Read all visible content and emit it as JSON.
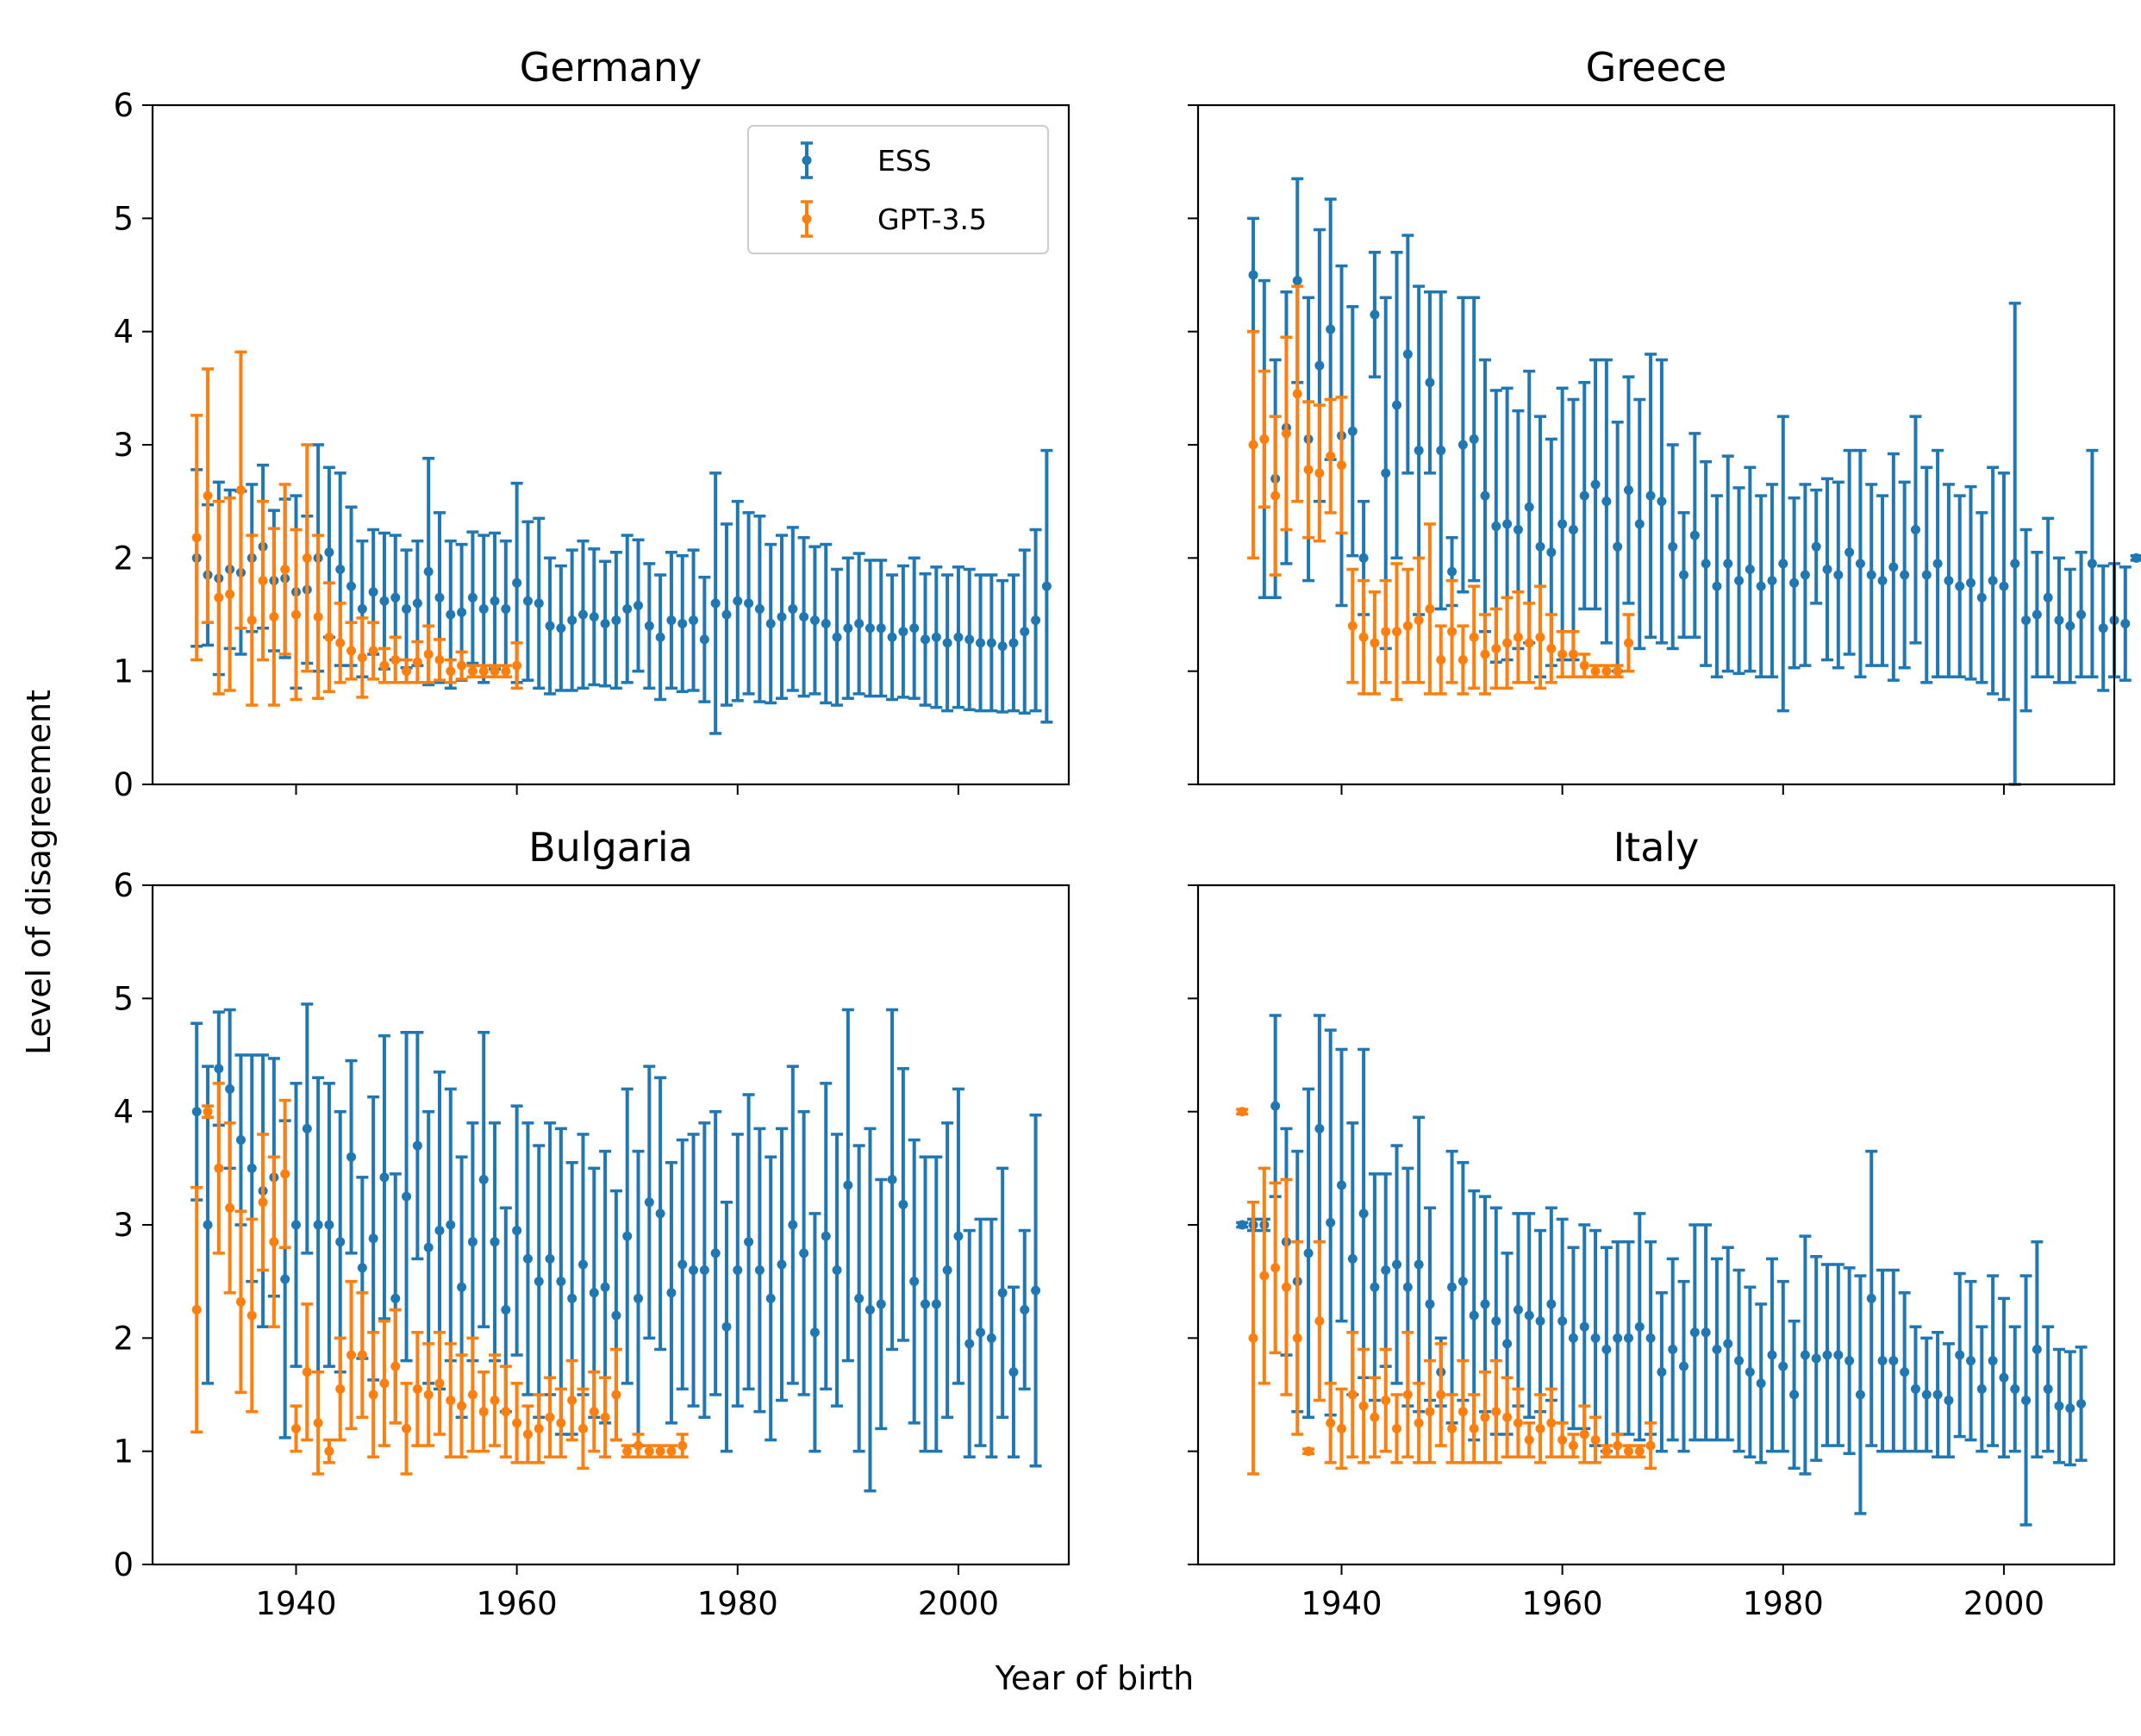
{
  "figure": {
    "xlabel": "Year of birth",
    "ylabel": "Level of disagreement"
  },
  "colors": {
    "ESS": "#1f77b4",
    "GPT-3.5": "#ff7f0e"
  },
  "legend": {
    "placement": "top-right",
    "panel": 0,
    "entries": [
      "ESS",
      "GPT-3.5"
    ]
  },
  "chart_data": [
    {
      "type": "scatter",
      "title": "Germany",
      "x_start": 1931,
      "xlim": [
        1927,
        2010
      ],
      "ylim": [
        0,
        6
      ],
      "x_ticks": [
        1940,
        1960,
        1980,
        2000
      ],
      "y_ticks": [
        0,
        1,
        2,
        3,
        4,
        5,
        6
      ],
      "series": [
        {
          "name": "ESS",
          "mean": [
            2.0,
            1.85,
            1.82,
            1.9,
            1.87,
            2.0,
            2.1,
            1.8,
            1.82,
            1.7,
            1.72,
            2.0,
            2.05,
            1.9,
            1.75,
            1.55,
            1.7,
            1.62,
            1.65,
            1.55,
            1.6,
            1.88,
            1.65,
            1.5,
            1.52,
            1.65,
            1.55,
            1.62,
            1.55,
            1.78,
            1.62,
            1.6,
            1.4,
            1.38,
            1.45,
            1.5,
            1.48,
            1.42,
            1.45,
            1.55,
            1.58,
            1.4,
            1.3,
            1.45,
            1.42,
            1.45,
            1.28,
            1.6,
            1.5,
            1.62,
            1.6,
            1.55,
            1.42,
            1.48,
            1.55,
            1.48,
            1.45,
            1.42,
            1.3,
            1.38,
            1.42,
            1.38,
            1.38,
            1.3,
            1.35,
            1.38,
            1.28,
            1.3,
            1.25,
            1.3,
            1.28,
            1.25,
            1.25,
            1.22,
            1.25,
            1.35,
            1.45,
            1.75
          ],
          "err": [
            0.78,
            0.62,
            0.85,
            0.7,
            0.72,
            0.65,
            0.72,
            0.62,
            0.7,
            0.85,
            0.65,
            1.0,
            0.75,
            0.85,
            0.7,
            0.6,
            0.55,
            0.6,
            0.55,
            0.52,
            0.55,
            1.0,
            0.75,
            0.65,
            0.6,
            0.58,
            0.65,
            0.6,
            0.6,
            0.88,
            0.7,
            0.75,
            0.6,
            0.55,
            0.62,
            0.65,
            0.6,
            0.55,
            0.6,
            0.65,
            0.58,
            0.55,
            0.55,
            0.6,
            0.6,
            0.62,
            0.55,
            1.15,
            0.8,
            0.88,
            0.8,
            0.82,
            0.7,
            0.72,
            0.72,
            0.7,
            0.65,
            0.7,
            0.6,
            0.62,
            0.62,
            0.6,
            0.6,
            0.55,
            0.58,
            0.62,
            0.58,
            0.62,
            0.6,
            0.62,
            0.62,
            0.6,
            0.6,
            0.58,
            0.6,
            0.72,
            0.8,
            1.2
          ]
        },
        {
          "name": "GPT-3.5",
          "mean": [
            2.18,
            2.55,
            1.65,
            1.68,
            2.6,
            1.45,
            1.8,
            1.48,
            1.9,
            1.5,
            2.0,
            1.48,
            1.3,
            1.25,
            1.18,
            1.12,
            1.18,
            1.05,
            1.1,
            1.0,
            1.08,
            1.15,
            1.1,
            1.0,
            1.05,
            1.0,
            1.0,
            1.0,
            1.0,
            1.05
          ],
          "err": [
            1.08,
            1.12,
            0.85,
            0.85,
            1.22,
            0.75,
            0.7,
            0.78,
            0.75,
            0.75,
            1.0,
            0.72,
            0.48,
            0.35,
            0.25,
            0.35,
            0.25,
            0.15,
            0.2,
            0.1,
            0.18,
            0.25,
            0.18,
            0.1,
            0.12,
            0.05,
            0.05,
            0.05,
            0.05,
            0.2
          ]
        }
      ]
    },
    {
      "type": "scatter",
      "title": "Greece",
      "x_start": 1932,
      "xlim": [
        1927,
        2010
      ],
      "ylim": [
        0,
        6
      ],
      "x_ticks": [
        1940,
        1960,
        1980,
        2000
      ],
      "y_ticks": [
        0,
        1,
        2,
        3,
        4,
        5,
        6
      ],
      "series": [
        {
          "name": "ESS",
          "mean": [
            4.5,
            3.05,
            2.7,
            3.15,
            4.45,
            3.05,
            3.7,
            4.02,
            3.08,
            3.12,
            2.0,
            4.15,
            2.75,
            3.35,
            3.8,
            2.95,
            3.55,
            2.95,
            1.88,
            3.0,
            3.05,
            2.55,
            2.28,
            2.3,
            2.25,
            2.45,
            2.1,
            2.05,
            2.3,
            2.25,
            2.55,
            2.65,
            2.5,
            2.1,
            2.6,
            2.3,
            2.55,
            2.5,
            2.1,
            1.85,
            2.2,
            1.95,
            1.75,
            1.95,
            1.8,
            1.9,
            1.75,
            1.8,
            1.95,
            1.78,
            1.85,
            2.1,
            1.9,
            1.85,
            2.05,
            1.95,
            1.85,
            1.8,
            1.92,
            1.85,
            2.25,
            1.85,
            1.95,
            1.8,
            1.75,
            1.78,
            1.65,
            1.8,
            1.75,
            1.95,
            1.45,
            1.5,
            1.65,
            1.45,
            1.4,
            1.5,
            1.95,
            1.38,
            1.45,
            1.42,
            2.0
          ],
          "err": [
            0.5,
            1.4,
            1.05,
            1.2,
            0.9,
            1.25,
            1.2,
            1.15,
            1.5,
            1.1,
            0.5,
            0.55,
            1.55,
            1.35,
            1.05,
            1.45,
            0.8,
            1.4,
            0.3,
            1.3,
            1.25,
            1.2,
            1.2,
            1.2,
            1.05,
            1.2,
            1.15,
            1.0,
            1.2,
            1.15,
            1.0,
            1.1,
            1.25,
            1.1,
            1.0,
            1.1,
            1.25,
            1.25,
            0.9,
            0.55,
            0.9,
            0.9,
            0.8,
            0.95,
            0.82,
            0.9,
            0.8,
            0.85,
            1.3,
            0.75,
            0.8,
            0.5,
            0.8,
            0.82,
            0.9,
            1.0,
            0.8,
            0.75,
            1.0,
            0.82,
            1.0,
            0.95,
            1.0,
            0.85,
            0.8,
            0.85,
            0.75,
            1.0,
            1.0,
            2.3,
            0.8,
            0.55,
            0.7,
            0.55,
            0.5,
            0.55,
            1.0,
            0.55,
            0.5,
            0.5,
            0.02
          ]
        },
        {
          "name": "GPT-3.5",
          "mean": [
            3.0,
            3.05,
            2.55,
            3.1,
            3.45,
            2.78,
            2.75,
            2.9,
            2.82,
            1.4,
            1.3,
            1.25,
            1.35,
            1.35,
            1.4,
            1.45,
            1.55,
            1.1,
            1.35,
            1.1,
            1.3,
            1.15,
            1.2,
            1.25,
            1.3,
            1.25,
            1.3,
            1.2,
            1.15,
            1.15,
            1.05,
            1.0,
            1.0,
            1.0,
            1.25
          ],
          "err": [
            1.0,
            0.6,
            0.7,
            0.85,
            0.95,
            0.6,
            0.6,
            0.5,
            0.6,
            0.5,
            0.5,
            0.45,
            0.45,
            0.6,
            0.5,
            0.55,
            0.75,
            0.3,
            0.45,
            0.3,
            0.45,
            0.35,
            0.35,
            0.4,
            0.4,
            0.35,
            0.45,
            0.3,
            0.2,
            0.2,
            0.1,
            0.05,
            0.05,
            0.05,
            0.25
          ]
        }
      ]
    },
    {
      "type": "scatter",
      "title": "Bulgaria",
      "x_start": 1931,
      "xlim": [
        1927,
        2010
      ],
      "ylim": [
        0,
        6
      ],
      "x_ticks": [
        1940,
        1960,
        1980,
        2000
      ],
      "y_ticks": [
        0,
        1,
        2,
        3,
        4,
        5,
        6
      ],
      "series": [
        {
          "name": "ESS",
          "mean": [
            4.0,
            3.0,
            4.38,
            4.2,
            3.75,
            3.5,
            3.3,
            3.42,
            2.52,
            3.0,
            3.85,
            3.0,
            3.0,
            2.85,
            3.6,
            2.62,
            2.88,
            3.42,
            2.35,
            3.25,
            3.7,
            2.8,
            2.95,
            3.0,
            2.45,
            2.85,
            3.4,
            2.85,
            2.25,
            2.95,
            2.7,
            2.5,
            2.7,
            2.5,
            2.35,
            2.65,
            2.4,
            2.45,
            2.2,
            2.9,
            2.35,
            3.2,
            3.1,
            2.4,
            2.65,
            2.6,
            2.6,
            2.75,
            2.1,
            2.6,
            2.85,
            2.6,
            2.35,
            2.65,
            3.0,
            2.75,
            2.05,
            2.9,
            2.6,
            3.35,
            2.35,
            2.25,
            2.3,
            3.4,
            3.18,
            2.5,
            2.3,
            2.3,
            2.6,
            2.9,
            1.95,
            2.05,
            2.0,
            2.4,
            1.7,
            2.25,
            2.42
          ],
          "err": [
            0.78,
            1.4,
            0.5,
            0.7,
            0.75,
            1.0,
            1.2,
            1.05,
            1.4,
            1.25,
            1.1,
            1.3,
            1.25,
            1.15,
            0.85,
            0.8,
            1.25,
            1.25,
            1.1,
            1.45,
            1.0,
            1.2,
            1.4,
            1.2,
            1.15,
            1.05,
            1.3,
            1.05,
            0.9,
            1.1,
            1.2,
            1.2,
            1.2,
            1.35,
            1.2,
            1.15,
            1.1,
            1.2,
            1.1,
            1.3,
            1.3,
            1.2,
            1.2,
            1.15,
            1.1,
            1.2,
            1.3,
            1.25,
            1.1,
            1.2,
            1.3,
            1.25,
            1.25,
            1.2,
            1.4,
            1.25,
            1.05,
            1.35,
            1.2,
            1.55,
            1.35,
            1.6,
            1.1,
            1.5,
            1.2,
            1.25,
            1.3,
            1.3,
            1.3,
            1.3,
            1.0,
            1.0,
            1.05,
            1.1,
            0.75,
            0.7,
            1.55
          ]
        },
        {
          "name": "GPT-3.5",
          "mean": [
            2.25,
            4.0,
            3.5,
            3.15,
            2.32,
            2.2,
            3.2,
            2.85,
            3.45,
            1.2,
            1.7,
            1.25,
            1.0,
            1.55,
            1.85,
            1.85,
            1.5,
            1.6,
            1.75,
            1.2,
            1.55,
            1.5,
            1.6,
            1.45,
            1.4,
            1.5,
            1.35,
            1.45,
            1.35,
            1.25,
            1.15,
            1.2,
            1.3,
            1.25,
            1.45,
            1.2,
            1.35,
            1.3,
            1.5,
            1.0,
            1.05,
            1.0,
            1.0,
            1.0,
            1.05
          ],
          "err": [
            1.08,
            0.05,
            0.75,
            0.75,
            0.8,
            0.85,
            0.6,
            0.75,
            0.65,
            0.2,
            0.6,
            0.45,
            0.1,
            0.45,
            0.65,
            0.55,
            0.55,
            0.55,
            0.5,
            0.4,
            0.5,
            0.45,
            0.45,
            0.5,
            0.45,
            0.5,
            0.35,
            0.4,
            0.4,
            0.35,
            0.25,
            0.3,
            0.35,
            0.3,
            0.35,
            0.35,
            0.35,
            0.35,
            0.4,
            0.05,
            0.1,
            0.05,
            0.05,
            0.05,
            0.1
          ]
        }
      ]
    },
    {
      "type": "scatter",
      "title": "Italy",
      "x_start": 1931,
      "xlim": [
        1927,
        2010
      ],
      "ylim": [
        0,
        6
      ],
      "x_ticks": [
        1940,
        1960,
        1980,
        2000
      ],
      "y_ticks": [
        0,
        1,
        2,
        3,
        4,
        5,
        6
      ],
      "series": [
        {
          "name": "ESS",
          "mean": [
            3.0,
            3.0,
            3.0,
            4.05,
            2.85,
            2.5,
            2.75,
            3.85,
            3.02,
            3.35,
            2.7,
            3.1,
            2.45,
            2.6,
            2.65,
            2.45,
            2.65,
            2.3,
            1.7,
            2.45,
            2.5,
            2.2,
            2.3,
            2.15,
            1.95,
            2.25,
            2.2,
            2.15,
            2.3,
            2.15,
            2.0,
            2.1,
            2.0,
            1.9,
            2.0,
            2.0,
            2.1,
            2.0,
            1.7,
            1.9,
            1.75,
            2.05,
            2.05,
            1.9,
            1.95,
            1.8,
            1.7,
            1.6,
            1.85,
            1.75,
            1.5,
            1.85,
            1.82,
            1.85,
            1.85,
            1.8,
            1.5,
            2.35,
            1.8,
            1.8,
            1.7,
            1.55,
            1.5,
            1.5,
            1.45,
            1.85,
            1.8,
            1.55,
            1.8,
            1.65,
            1.55,
            1.45,
            1.9,
            1.55,
            1.4,
            1.38,
            1.42
          ],
          "err": [
            0.02,
            0.05,
            0.05,
            0.8,
            1.0,
            1.15,
            1.45,
            1.0,
            1.7,
            1.2,
            1.2,
            1.45,
            1.0,
            0.85,
            1.05,
            1.05,
            1.3,
            0.85,
            0.3,
            1.2,
            1.05,
            1.1,
            0.95,
            1.0,
            0.8,
            0.85,
            0.9,
            0.8,
            0.85,
            0.9,
            0.8,
            0.9,
            0.95,
            0.9,
            0.85,
            0.85,
            1.0,
            0.85,
            0.7,
            0.8,
            0.75,
            0.95,
            0.95,
            0.8,
            0.85,
            0.8,
            0.75,
            0.7,
            0.85,
            0.75,
            0.65,
            1.05,
            0.9,
            0.8,
            0.8,
            0.82,
            1.05,
            1.3,
            0.8,
            0.8,
            0.7,
            0.55,
            0.5,
            0.55,
            0.5,
            0.72,
            0.7,
            0.55,
            0.75,
            0.7,
            0.55,
            1.1,
            0.95,
            0.55,
            0.5,
            0.5,
            0.5
          ]
        },
        {
          "name": "GPT-3.5",
          "mean": [
            4.0,
            2.0,
            2.55,
            2.62,
            2.45,
            2.0,
            1.0,
            2.15,
            1.25,
            1.2,
            1.5,
            1.4,
            1.3,
            1.45,
            1.2,
            1.5,
            1.25,
            1.35,
            1.5,
            1.2,
            1.35,
            1.2,
            1.3,
            1.35,
            1.3,
            1.25,
            1.1,
            1.2,
            1.25,
            1.1,
            1.05,
            1.15,
            1.1,
            1.0,
            1.05,
            1.0,
            1.0,
            1.05
          ],
          "err": [
            0.02,
            1.2,
            0.95,
            0.75,
            0.95,
            0.85,
            0.02,
            0.7,
            0.35,
            0.35,
            0.55,
            0.5,
            0.35,
            0.45,
            0.3,
            0.55,
            0.35,
            0.45,
            0.45,
            0.3,
            0.45,
            0.3,
            0.4,
            0.45,
            0.35,
            0.3,
            0.15,
            0.3,
            0.3,
            0.15,
            0.1,
            0.25,
            0.2,
            0.05,
            0.1,
            0.05,
            0.05,
            0.2
          ]
        }
      ]
    }
  ]
}
